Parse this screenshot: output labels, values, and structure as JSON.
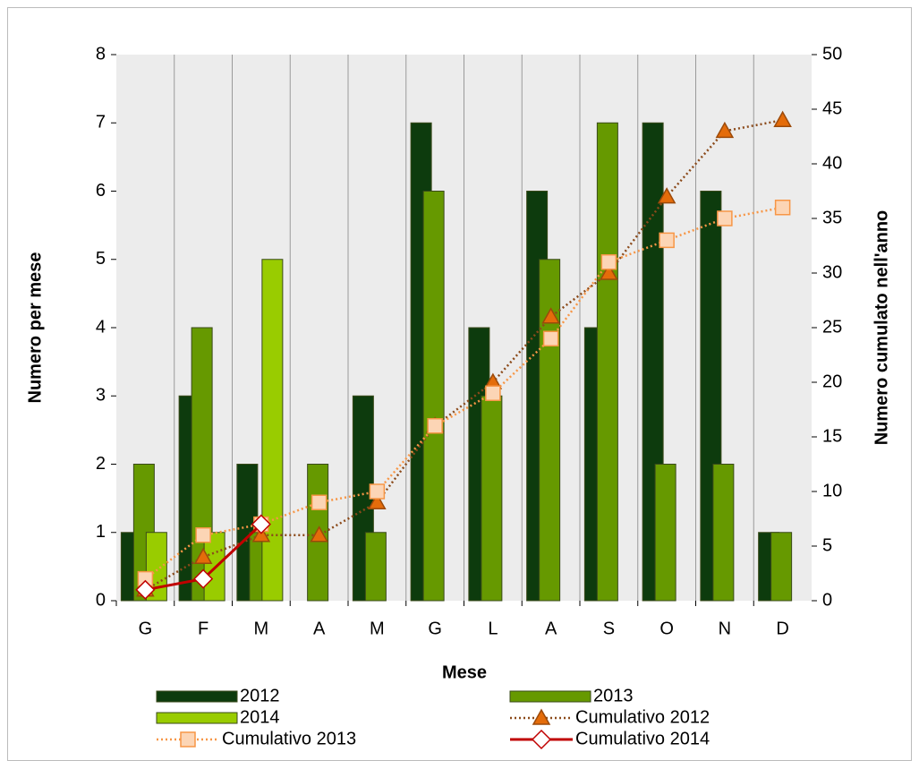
{
  "chart_data": {
    "type": "bar-line",
    "xlabel": "Mese",
    "ylabel": "Numero per mese",
    "y2label": "Numero cumulato nell'anno",
    "categories": [
      "G",
      "F",
      "M",
      "A",
      "M",
      "G",
      "L",
      "A",
      "S",
      "O",
      "N",
      "D"
    ],
    "series": [
      {
        "name": "2012",
        "type": "bar",
        "color": "#0d3b0d",
        "values": [
          1,
          3,
          2,
          0,
          3,
          7,
          4,
          6,
          4,
          7,
          6,
          1
        ]
      },
      {
        "name": "2013",
        "type": "bar",
        "color": "#669900",
        "values": [
          2,
          4,
          1,
          2,
          1,
          6,
          3,
          5,
          7,
          2,
          2,
          1
        ]
      },
      {
        "name": "2014",
        "type": "bar",
        "color": "#99cc00",
        "values": [
          1,
          1,
          5,
          null,
          null,
          null,
          null,
          null,
          null,
          null,
          null,
          null
        ]
      },
      {
        "name": "Cumulativo 2012",
        "type": "line",
        "axis": "y2",
        "color": "#8b4a1a",
        "marker": "triangle",
        "marker_color": "#e46c0a",
        "dash": "dotted",
        "values": [
          1,
          4,
          6,
          6,
          9,
          16,
          20,
          26,
          30,
          37,
          43,
          44
        ]
      },
      {
        "name": "Cumulativo 2013",
        "type": "line",
        "axis": "y2",
        "color": "#f79646",
        "marker": "square",
        "marker_color": "#fcd5b5",
        "dash": "dotted",
        "values": [
          2,
          6,
          7,
          9,
          10,
          16,
          19,
          24,
          31,
          33,
          35,
          36
        ]
      },
      {
        "name": "Cumulativo 2014",
        "type": "line",
        "axis": "y2",
        "color": "#c00000",
        "marker": "diamond",
        "marker_color": "#ffffff",
        "dash": "solid",
        "values": [
          1,
          2,
          7,
          null,
          null,
          null,
          null,
          null,
          null,
          null,
          null,
          null
        ]
      }
    ],
    "ylim": [
      0,
      8
    ],
    "yticks": [
      0,
      1,
      2,
      3,
      4,
      5,
      6,
      7,
      8
    ],
    "y2lim": [
      0,
      50
    ],
    "y2ticks": [
      0,
      5,
      10,
      15,
      20,
      25,
      30,
      35,
      40,
      45,
      50
    ],
    "grid": true
  }
}
